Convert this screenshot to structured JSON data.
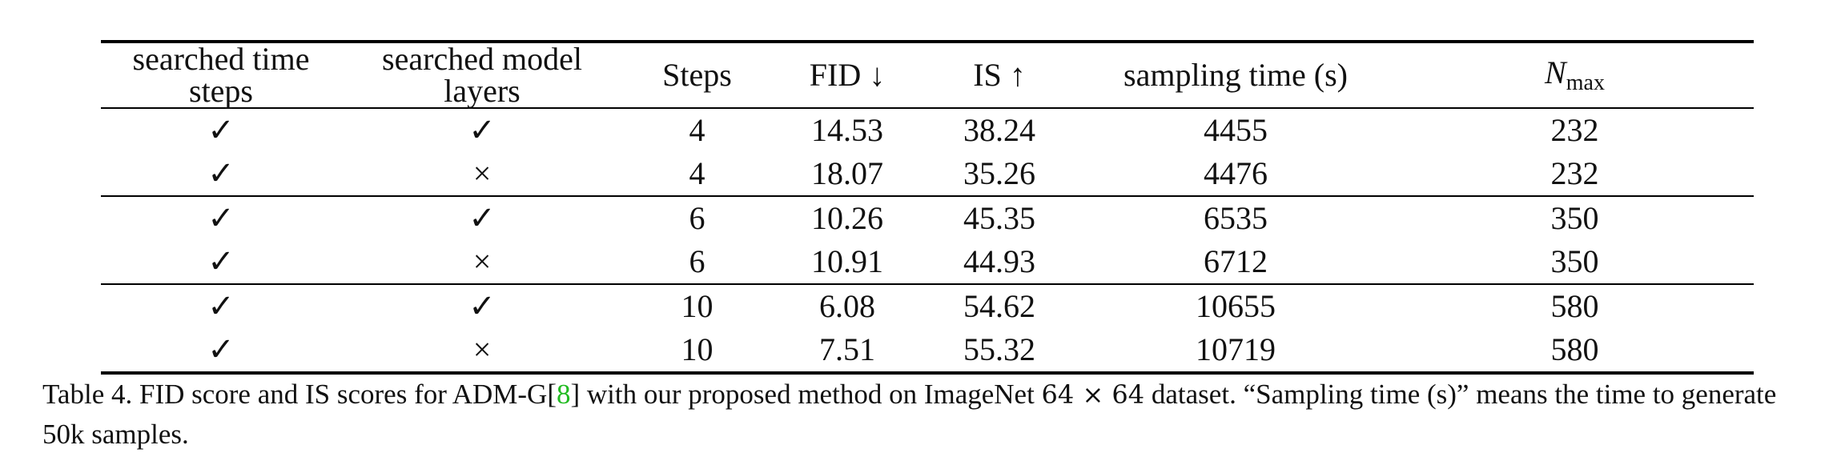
{
  "table": {
    "headers": [
      "searched time steps",
      "searched model layers",
      "Steps",
      "FID ↓",
      "IS ↑",
      "sampling time (s)"
    ],
    "nmax_header": {
      "base": "N",
      "sub": "max"
    },
    "rows": [
      [
        "✓",
        "✓",
        "4",
        "14.53",
        "38.24",
        "4455",
        "232"
      ],
      [
        "✓",
        "×",
        "4",
        "18.07",
        "35.26",
        "4476",
        "232"
      ],
      [
        "✓",
        "✓",
        "6",
        "10.26",
        "45.35",
        "6535",
        "350"
      ],
      [
        "✓",
        "×",
        "6",
        "10.91",
        "44.93",
        "6712",
        "350"
      ],
      [
        "✓",
        "✓",
        "10",
        "6.08",
        "54.62",
        "10655",
        "580"
      ],
      [
        "✓",
        "×",
        "10",
        "7.51",
        "55.32",
        "10719",
        "580"
      ]
    ]
  },
  "caption": {
    "pre": "Table 4. FID score and IS scores for ADM-G[",
    "cite": "8",
    "mid": "] with our proposed method on ImageNet ",
    "math": "64 × 64",
    "post": " dataset. “Sampling time (s)” means the time to generate 50k samples."
  },
  "colors": {
    "citation": "#22bb22",
    "rule": "#000000"
  }
}
